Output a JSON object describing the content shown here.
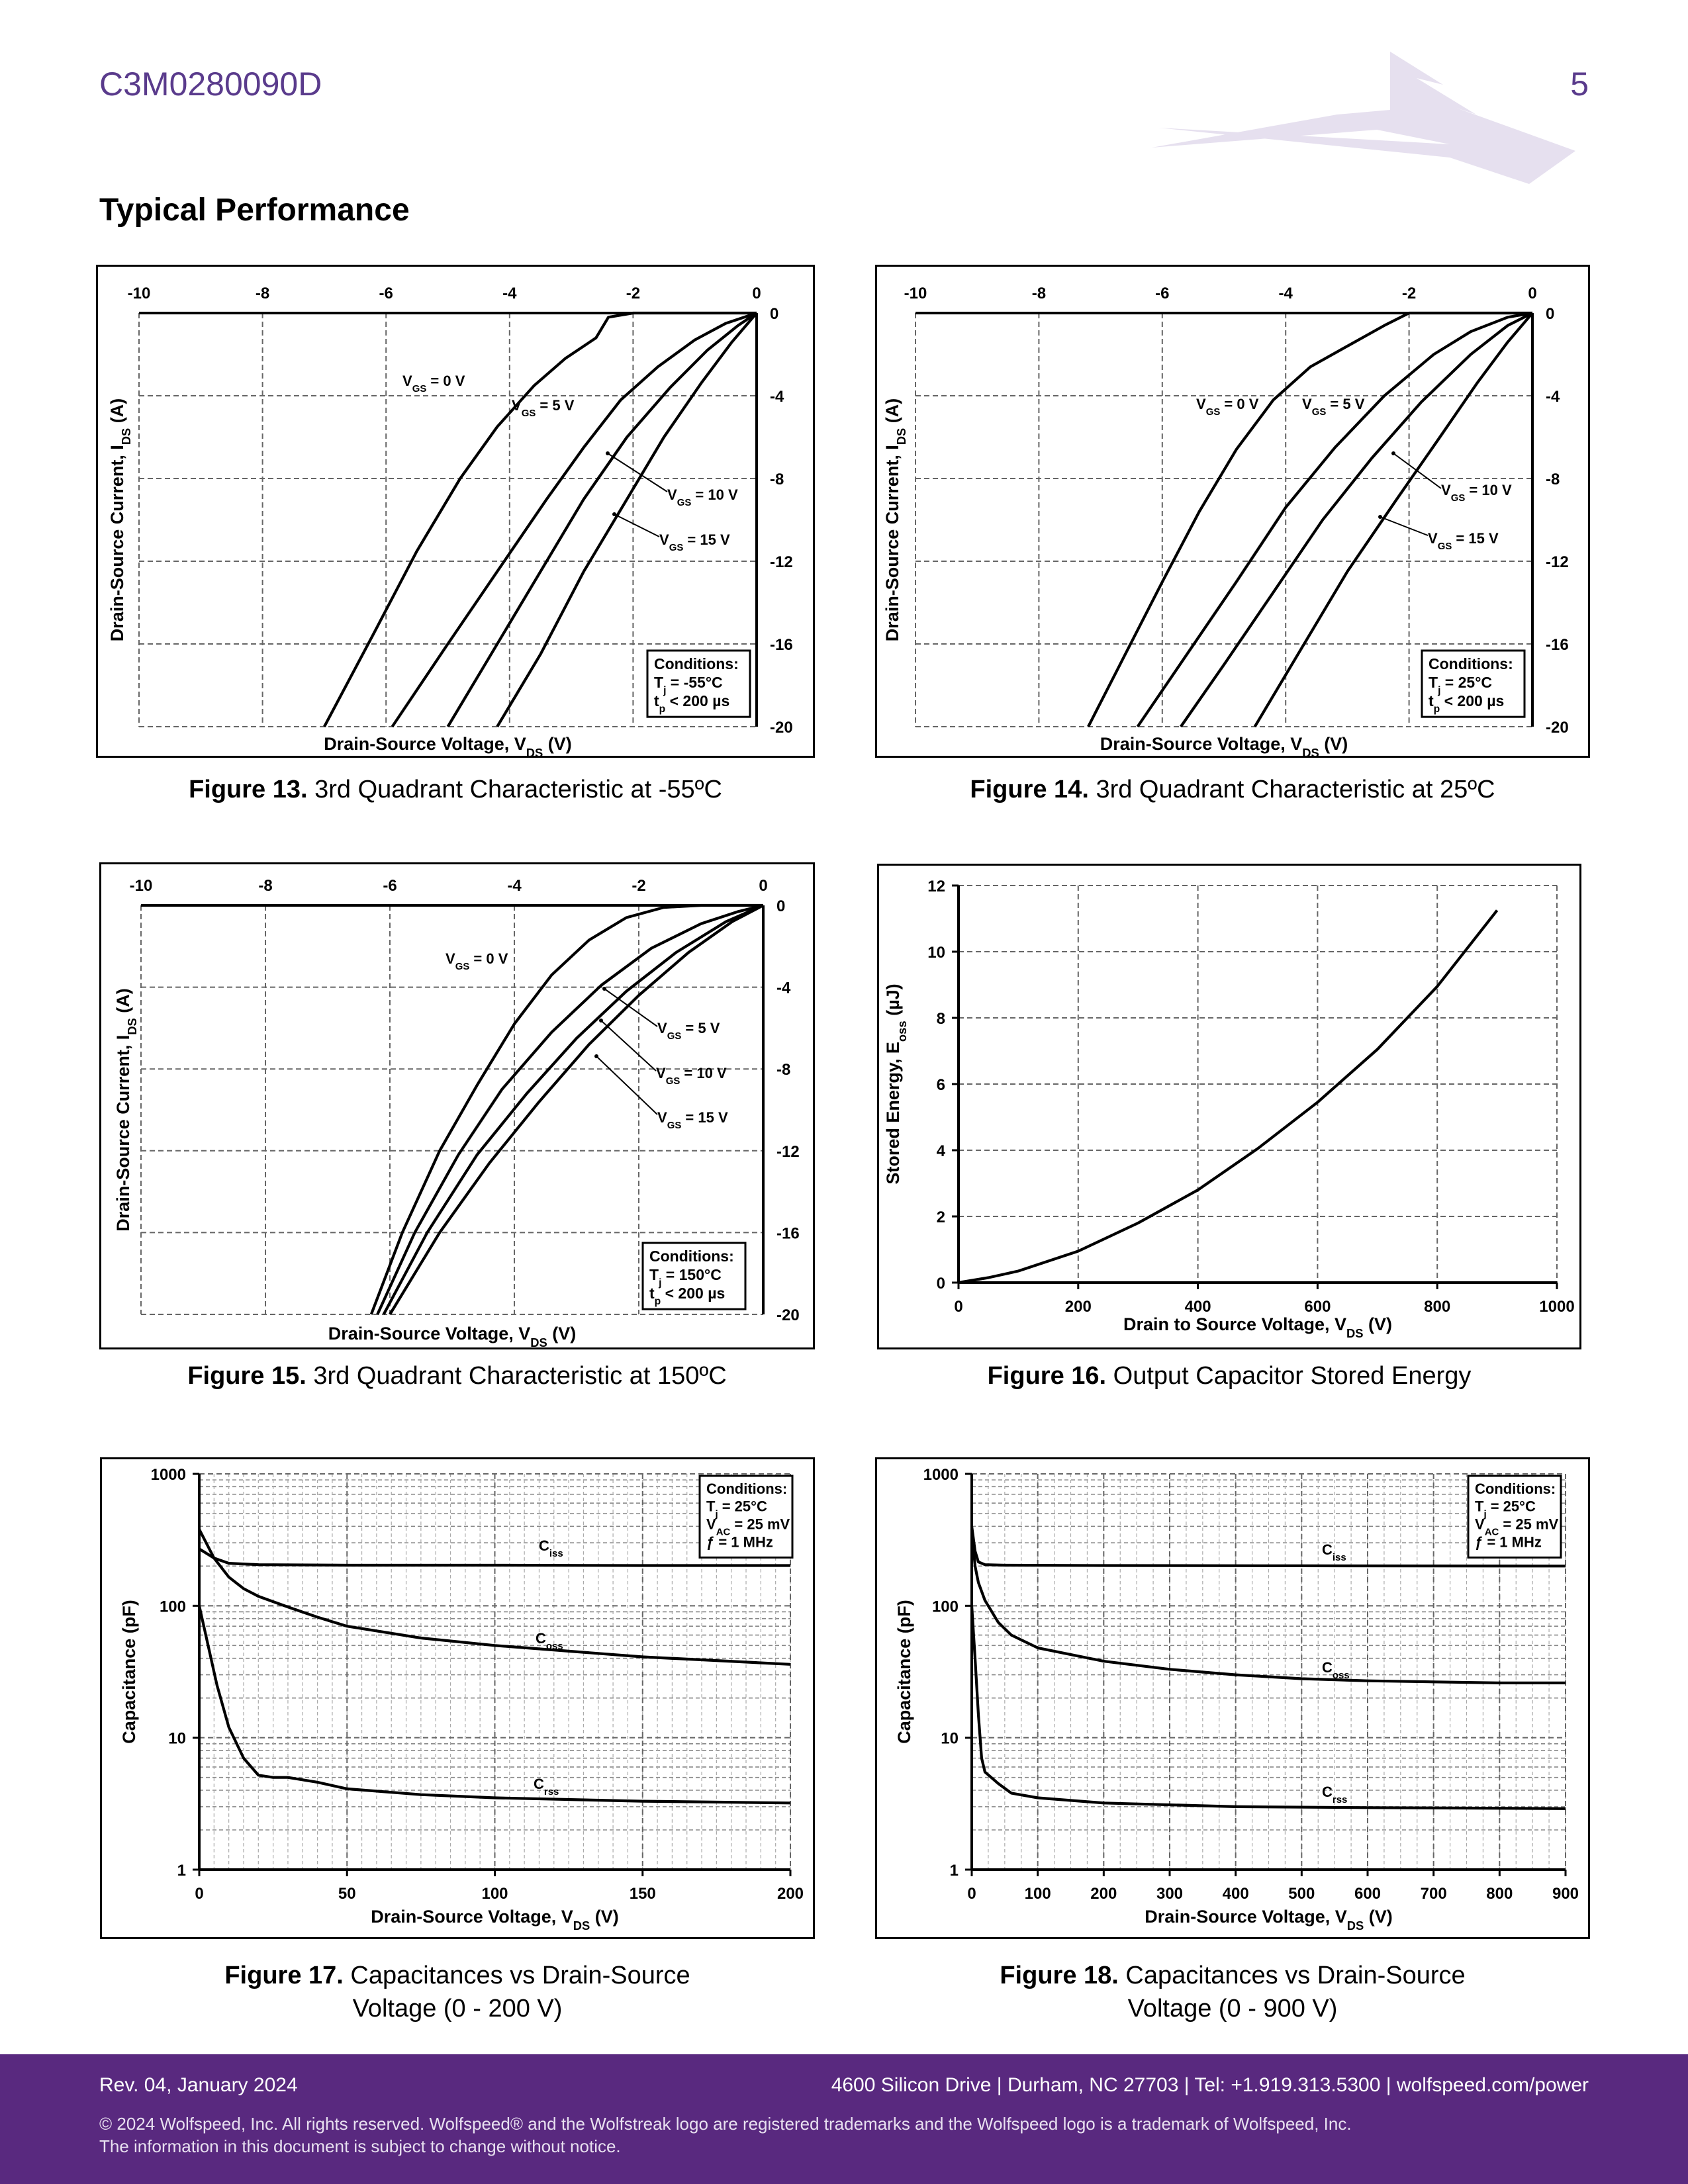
{
  "header": {
    "part_number": "C3M0280090D",
    "page_number": "5"
  },
  "section_title": "Typical Performance",
  "figures": [
    {
      "id": "fig13",
      "caption_bold": "Figure 13.",
      "caption_text": "3rd Quadrant Characteristic at -55ºC",
      "conditions": [
        "Conditions:",
        "Tj = -55°C",
        "tp < 200 µs"
      ],
      "xlabel": "Drain-Source Voltage, VDS (V)",
      "ylabel": "Drain-Source Current, IDS (A)",
      "x_ticks": [
        "-10",
        "-8",
        "-6",
        "-4",
        "-2",
        "0"
      ],
      "y_ticks": [
        "0",
        "-4",
        "-8",
        "-12",
        "-16",
        "-20"
      ],
      "curve_labels": [
        "VGS = 0 V",
        "VGS = 5 V",
        "VGS = 10 V",
        "VGS = 15 V"
      ]
    },
    {
      "id": "fig14",
      "caption_bold": "Figure 14.",
      "caption_text": "3rd Quadrant Characteristic at 25ºC",
      "conditions": [
        "Conditions:",
        "Tj = 25°C",
        "tp < 200 µs"
      ],
      "xlabel": "Drain-Source Voltage, VDS (V)",
      "ylabel": "Drain-Source Current, IDS (A)",
      "x_ticks": [
        "-10",
        "-8",
        "-6",
        "-4",
        "-2",
        "0"
      ],
      "y_ticks": [
        "0",
        "-4",
        "-8",
        "-12",
        "-16",
        "-20"
      ],
      "curve_labels": [
        "VGS = 0 V",
        "VGS = 5 V",
        "VGS = 10 V",
        "VGS = 15 V"
      ]
    },
    {
      "id": "fig15",
      "caption_bold": "Figure 15.",
      "caption_text": "3rd Quadrant Characteristic at 150ºC",
      "conditions": [
        "Conditions:",
        "Tj = 150°C",
        "tp < 200 µs"
      ],
      "xlabel": "Drain-Source Voltage,  VDS (V)",
      "ylabel": "Drain-Source Current, IDS (A)",
      "x_ticks": [
        "-10",
        "-8",
        "-6",
        "-4",
        "-2",
        "0"
      ],
      "y_ticks": [
        "0",
        "-4",
        "-8",
        "-12",
        "-16",
        "-20"
      ],
      "curve_labels": [
        "VGS = 0 V",
        "VGS = 5 V",
        "VGS = 10 V",
        "VGS = 15 V"
      ]
    },
    {
      "id": "fig16",
      "caption_bold": "Figure 16.",
      "caption_text": "Output Capacitor Stored Energy",
      "xlabel": "Drain to Source Voltage, VDS (V)",
      "ylabel": "Stored Energy, Eoss (µJ)",
      "x_ticks": [
        "0",
        "200",
        "400",
        "600",
        "800",
        "1000"
      ],
      "y_ticks": [
        "0",
        "2",
        "4",
        "6",
        "8",
        "10",
        "12"
      ]
    },
    {
      "id": "fig17",
      "caption_bold": "Figure 17.",
      "caption_text": "Capacitances vs Drain-Source",
      "caption_line2": "Voltage (0 - 200 V)",
      "conditions": [
        "Conditions:",
        "Tj = 25°C",
        "VAC = 25 mV",
        "ƒ = 1 MHz"
      ],
      "xlabel": "Drain-Source Voltage, VDS (V)",
      "ylabel": "Capacitance (pF)",
      "x_ticks": [
        "0",
        "50",
        "100",
        "150",
        "200"
      ],
      "y_ticks": [
        "1",
        "10",
        "100",
        "1000"
      ],
      "curve_labels": [
        "Ciss",
        "Coss",
        "Crss"
      ]
    },
    {
      "id": "fig18",
      "caption_bold": "Figure 18.",
      "caption_text": "Capacitances vs Drain-Source",
      "caption_line2": "Voltage (0 - 900 V)",
      "conditions": [
        "Conditions:",
        "Tj = 25°C",
        "VAC = 25 mV",
        "ƒ = 1 MHz"
      ],
      "xlabel": "Drain-Source Voltage, VDS (V)",
      "ylabel": "Capacitance (pF)",
      "x_ticks": [
        "0",
        "100",
        "200",
        "300",
        "400",
        "500",
        "600",
        "700",
        "800",
        "900"
      ],
      "y_ticks": [
        "1",
        "10",
        "100",
        "1000"
      ],
      "curve_labels": [
        "Ciss",
        "Coss",
        "Crss"
      ]
    }
  ],
  "chart_data": [
    {
      "type": "line",
      "id": "fig13",
      "xlim": [
        -10,
        0
      ],
      "ylim": [
        -20,
        0
      ],
      "grid": true,
      "series": [
        {
          "name": "VGS = 0 V",
          "x": [
            -7.0,
            -6.2,
            -5.5,
            -4.8,
            -4.2,
            -3.6,
            -3.1,
            -2.6,
            -2.4,
            -2.0,
            -1.2,
            0
          ],
          "y": [
            -20,
            -15.5,
            -11.5,
            -8,
            -5.5,
            -3.5,
            -2.2,
            -1.2,
            -0.2,
            0,
            0,
            0
          ]
        },
        {
          "name": "VGS = 5 V",
          "x": [
            -5.9,
            -5.0,
            -4.2,
            -3.4,
            -2.8,
            -2.2,
            -1.6,
            -1.0,
            -0.5,
            0
          ],
          "y": [
            -20,
            -16,
            -12.5,
            -9,
            -6.5,
            -4.2,
            -2.6,
            -1.3,
            -0.5,
            0
          ]
        },
        {
          "name": "VGS = 10 V",
          "x": [
            -5.0,
            -4.4,
            -3.6,
            -2.8,
            -2.1,
            -1.4,
            -0.8,
            -0.3,
            0
          ],
          "y": [
            -20,
            -17,
            -13,
            -9,
            -6,
            -3.6,
            -1.8,
            -0.6,
            0
          ]
        },
        {
          "name": "VGS = 15 V",
          "x": [
            -4.2,
            -3.5,
            -2.8,
            -2.1,
            -1.5,
            -0.9,
            -0.4,
            0
          ],
          "y": [
            -20,
            -16.5,
            -12.5,
            -9,
            -6,
            -3.4,
            -1.4,
            0
          ]
        }
      ]
    },
    {
      "type": "line",
      "id": "fig14",
      "xlim": [
        -10,
        0
      ],
      "ylim": [
        -20,
        0
      ],
      "grid": true,
      "series": [
        {
          "name": "VGS = 0 V",
          "x": [
            -7.2,
            -6.6,
            -6.0,
            -5.4,
            -4.8,
            -4.2,
            -3.6,
            -3.0,
            -2.4,
            -2.0,
            -1.0,
            0
          ],
          "y": [
            -20,
            -16.5,
            -13,
            -9.6,
            -6.6,
            -4.2,
            -2.6,
            -1.6,
            -0.6,
            0,
            0,
            0
          ]
        },
        {
          "name": "VGS = 5 V",
          "x": [
            -6.4,
            -5.6,
            -4.8,
            -4.0,
            -3.2,
            -2.4,
            -1.6,
            -1.0,
            -0.4,
            0
          ],
          "y": [
            -20,
            -16.5,
            -13,
            -9.4,
            -6.5,
            -4,
            -2,
            -0.9,
            -0.2,
            0
          ]
        },
        {
          "name": "VGS = 10 V",
          "x": [
            -5.7,
            -5.0,
            -4.2,
            -3.4,
            -2.6,
            -1.8,
            -1.0,
            -0.4,
            0
          ],
          "y": [
            -20,
            -17,
            -13.5,
            -10,
            -7,
            -4.3,
            -2,
            -0.6,
            0
          ]
        },
        {
          "name": "VGS = 15 V",
          "x": [
            -4.5,
            -3.8,
            -3.0,
            -2.2,
            -1.5,
            -0.9,
            -0.4,
            0
          ],
          "y": [
            -20,
            -16.5,
            -12.5,
            -9,
            -6,
            -3.4,
            -1.4,
            0
          ]
        }
      ]
    },
    {
      "type": "line",
      "id": "fig15",
      "xlim": [
        -10,
        0
      ],
      "ylim": [
        -20,
        0
      ],
      "grid": true,
      "series": [
        {
          "name": "VGS = 0 V",
          "x": [
            -6.3,
            -5.8,
            -5.2,
            -4.6,
            -4.0,
            -3.4,
            -2.8,
            -2.2,
            -1.6,
            -1.0,
            0
          ],
          "y": [
            -20,
            -16,
            -12,
            -8.8,
            -5.8,
            -3.4,
            -1.7,
            -0.6,
            -0.1,
            0,
            0
          ]
        },
        {
          "name": "VGS = 5 V",
          "x": [
            -6.2,
            -5.6,
            -4.9,
            -4.2,
            -3.4,
            -2.6,
            -1.8,
            -1.0,
            -0.4,
            0
          ],
          "y": [
            -20,
            -16,
            -12.2,
            -9,
            -6.2,
            -3.9,
            -2.1,
            -0.9,
            -0.3,
            0
          ]
        },
        {
          "name": "VGS = 10 V",
          "x": [
            -6.1,
            -5.4,
            -4.6,
            -3.8,
            -3.0,
            -2.2,
            -1.4,
            -0.6,
            0
          ],
          "y": [
            -20,
            -16,
            -12.2,
            -9.2,
            -6.5,
            -4.2,
            -2.3,
            -0.8,
            0
          ]
        },
        {
          "name": "VGS = 15 V",
          "x": [
            -6.0,
            -5.2,
            -4.4,
            -3.6,
            -2.8,
            -2.0,
            -1.2,
            -0.5,
            0
          ],
          "y": [
            -20,
            -16,
            -12.6,
            -9.6,
            -6.8,
            -4.4,
            -2.3,
            -0.8,
            0
          ]
        }
      ]
    },
    {
      "type": "line",
      "id": "fig16",
      "xlim": [
        0,
        1000
      ],
      "ylim": [
        0,
        12
      ],
      "grid": true,
      "series": [
        {
          "name": "",
          "x": [
            0,
            50,
            100,
            200,
            300,
            400,
            500,
            600,
            700,
            800,
            900
          ],
          "y": [
            0,
            0.15,
            0.35,
            0.95,
            1.8,
            2.8,
            4.05,
            5.45,
            7.05,
            8.95,
            11.25
          ]
        }
      ]
    },
    {
      "type": "line",
      "id": "fig17",
      "yscale": "log",
      "xlim": [
        0,
        200
      ],
      "ylim": [
        1,
        1000
      ],
      "grid": true,
      "series": [
        {
          "name": "Ciss",
          "x": [
            0,
            5,
            10,
            20,
            50,
            100,
            150,
            200
          ],
          "y": [
            270,
            230,
            210,
            205,
            203,
            203,
            202,
            202
          ]
        },
        {
          "name": "Coss",
          "x": [
            0,
            5,
            10,
            15,
            20,
            30,
            40,
            50,
            75,
            100,
            150,
            200
          ],
          "y": [
            380,
            230,
            165,
            135,
            118,
            98,
            82,
            70,
            57,
            50,
            41,
            36
          ]
        },
        {
          "name": "Crss",
          "x": [
            0,
            3,
            6,
            10,
            15,
            20,
            25,
            30,
            40,
            50,
            75,
            100,
            150,
            200
          ],
          "y": [
            100,
            50,
            25,
            12,
            7,
            5.2,
            5,
            5,
            4.6,
            4.1,
            3.7,
            3.5,
            3.3,
            3.2
          ]
        }
      ]
    },
    {
      "type": "line",
      "id": "fig18",
      "yscale": "log",
      "xlim": [
        0,
        900
      ],
      "ylim": [
        1,
        1000
      ],
      "grid": true,
      "series": [
        {
          "name": "Ciss",
          "x": [
            0,
            5,
            10,
            20,
            50,
            200,
            500,
            900
          ],
          "y": [
            400,
            260,
            215,
            205,
            203,
            202,
            201,
            200
          ]
        },
        {
          "name": "Coss",
          "x": [
            0,
            5,
            10,
            20,
            40,
            60,
            100,
            200,
            300,
            400,
            500,
            600,
            700,
            800,
            900
          ],
          "y": [
            380,
            200,
            150,
            110,
            75,
            60,
            48,
            38,
            33,
            30,
            28,
            27,
            26.5,
            26,
            26
          ]
        },
        {
          "name": "Crss",
          "x": [
            0,
            5,
            10,
            15,
            20,
            40,
            60,
            100,
            200,
            400,
            600,
            900
          ],
          "y": [
            100,
            40,
            15,
            7,
            5.5,
            4.5,
            3.8,
            3.5,
            3.2,
            3.0,
            2.95,
            2.9
          ]
        }
      ]
    }
  ],
  "footer": {
    "rev": "Rev. 04, January 2024",
    "address": "4600 Silicon Drive  |  Durham, NC 27703  |  Tel: +1.919.313.5300  |  wolfspeed.com/power",
    "copyright": "© 2024 Wolfspeed, Inc. All rights reserved. Wolfspeed® and the Wolfstreak logo are registered trademarks and the Wolfspeed logo is a trademark of Wolfspeed, Inc.",
    "notice": "The information in this document is subject to change without notice."
  }
}
